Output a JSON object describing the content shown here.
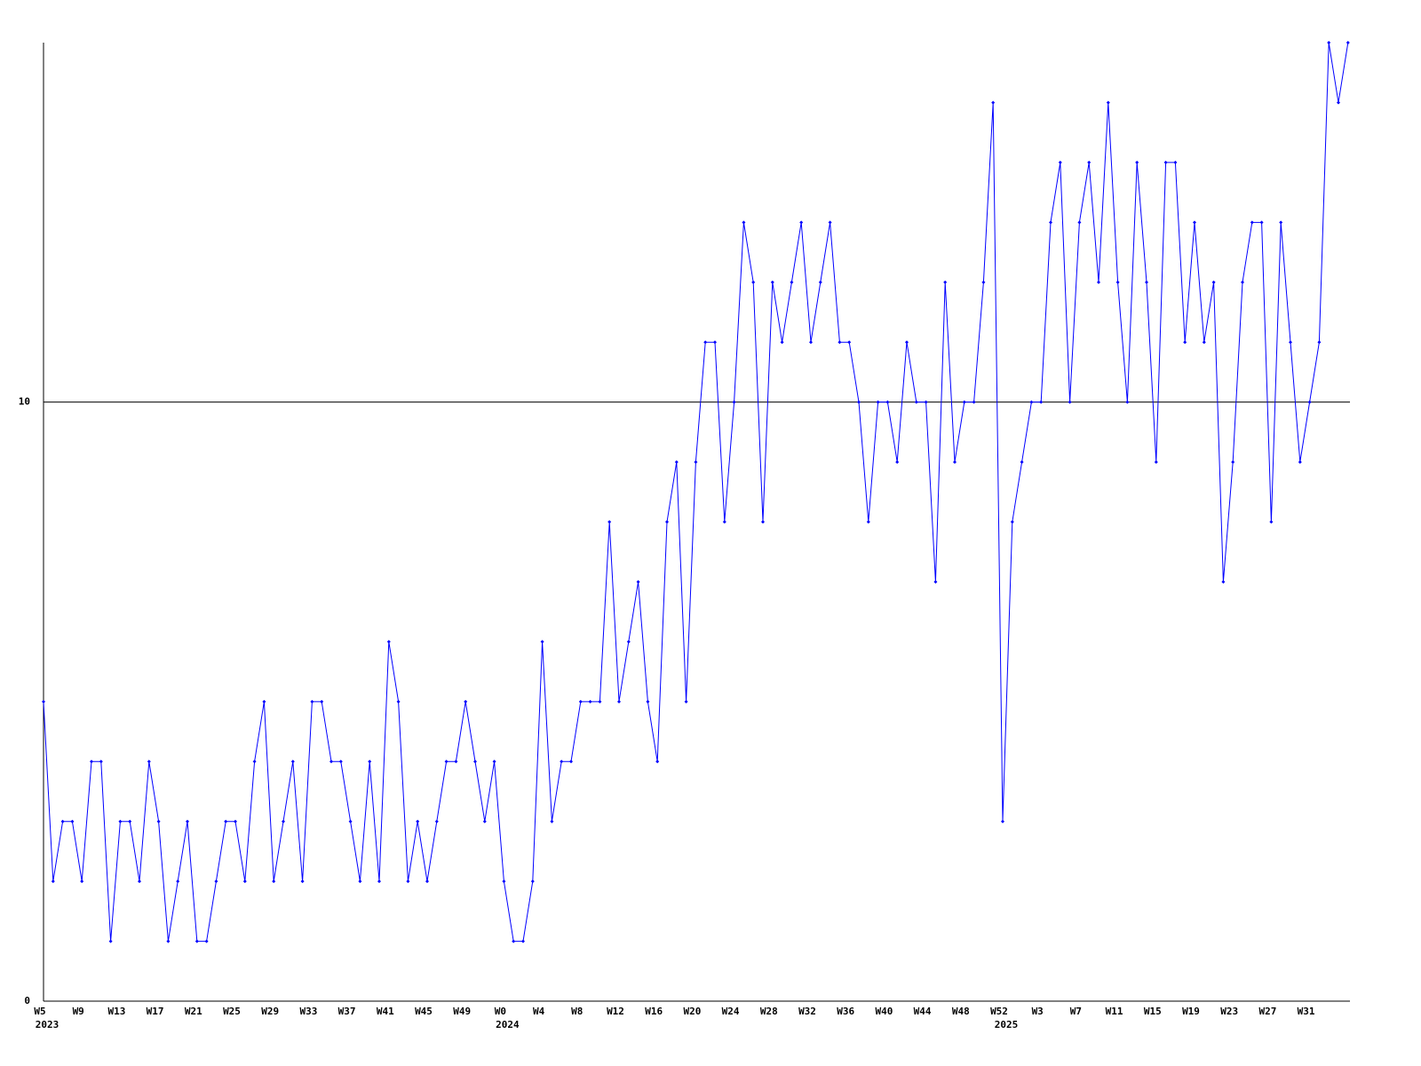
{
  "chart_data": {
    "type": "line",
    "categories": [
      "W5",
      null,
      null,
      null,
      "W9",
      null,
      null,
      null,
      "W13",
      null,
      null,
      null,
      "W17",
      null,
      null,
      null,
      "W21",
      null,
      null,
      null,
      "W25",
      null,
      null,
      null,
      "W29",
      null,
      null,
      null,
      "W33",
      null,
      null,
      null,
      "W37",
      null,
      null,
      null,
      "W41",
      null,
      null,
      null,
      "W45",
      null,
      null,
      null,
      "W49",
      null,
      null,
      null,
      "W0",
      null,
      null,
      null,
      "W4",
      null,
      null,
      null,
      "W8",
      null,
      null,
      null,
      "W12",
      null,
      null,
      null,
      "W16",
      null,
      null,
      null,
      "W20",
      null,
      null,
      null,
      "W24",
      null,
      null,
      null,
      "W28",
      null,
      null,
      null,
      "W32",
      null,
      null,
      null,
      "W36",
      null,
      null,
      null,
      "W40",
      null,
      null,
      null,
      "W44",
      null,
      null,
      null,
      "W48",
      null,
      null,
      null,
      "W52",
      null,
      null,
      null,
      "W3",
      null,
      null,
      null,
      "W7",
      null,
      null,
      null,
      "W11",
      null,
      null,
      null,
      "W15",
      null,
      null,
      null,
      "W19",
      null,
      null,
      null,
      "W23",
      null,
      null,
      null,
      "W27",
      null,
      null,
      null,
      "W31",
      null,
      null,
      null,
      null
    ],
    "x_year_labels": [
      "2023",
      null,
      null,
      null,
      null,
      null,
      null,
      null,
      null,
      null,
      null,
      null,
      null,
      null,
      null,
      null,
      null,
      null,
      null,
      null,
      null,
      null,
      null,
      null,
      null,
      null,
      null,
      null,
      null,
      null,
      null,
      null,
      null,
      null,
      null,
      null,
      null,
      null,
      null,
      null,
      null,
      null,
      null,
      null,
      null,
      null,
      null,
      null,
      "2024",
      null,
      null,
      null,
      null,
      null,
      null,
      null,
      null,
      null,
      null,
      null,
      null,
      null,
      null,
      null,
      null,
      null,
      null,
      null,
      null,
      null,
      null,
      null,
      null,
      null,
      null,
      null,
      null,
      null,
      null,
      null,
      null,
      null,
      null,
      null,
      null,
      null,
      null,
      null,
      null,
      null,
      null,
      null,
      null,
      null,
      null,
      null,
      null,
      null,
      null,
      null,
      "2025",
      null,
      null,
      null,
      null,
      null,
      null,
      null,
      null,
      null,
      null,
      null,
      null,
      null,
      null,
      null,
      null,
      null,
      null,
      null,
      null,
      null,
      null,
      null,
      null,
      null,
      null,
      null,
      null,
      null,
      null,
      null,
      null,
      null,
      null,
      null,
      null
    ],
    "values": [
      5,
      2,
      3,
      3,
      2,
      4,
      4,
      1,
      3,
      3,
      2,
      4,
      3,
      1,
      2,
      3,
      1,
      1,
      2,
      3,
      3,
      2,
      4,
      5,
      2,
      3,
      4,
      2,
      5,
      5,
      4,
      4,
      3,
      2,
      4,
      2,
      6,
      5,
      2,
      3,
      2,
      3,
      4,
      4,
      5,
      4,
      3,
      4,
      2,
      1,
      1,
      2,
      6,
      3,
      4,
      4,
      5,
      5,
      5,
      8,
      5,
      6,
      7,
      5,
      4,
      8,
      9,
      5,
      9,
      11,
      11,
      8,
      10,
      13,
      12,
      8,
      12,
      11,
      12,
      13,
      11,
      12,
      13,
      11,
      11,
      10,
      8,
      10,
      10,
      9,
      11,
      10,
      10,
      7,
      12,
      9,
      10,
      10,
      12,
      15,
      3,
      8,
      9,
      10,
      10,
      13,
      14,
      10,
      13,
      14,
      12,
      15,
      12,
      10,
      14,
      12,
      9,
      14,
      14,
      11,
      13,
      11,
      12,
      7,
      9,
      12,
      13,
      13,
      8,
      13,
      11,
      9,
      10,
      11,
      16,
      15,
      16
    ],
    "color": "#0000ff",
    "ylim": [
      0,
      16
    ],
    "yticks": [
      0,
      10
    ],
    "grid": true
  }
}
